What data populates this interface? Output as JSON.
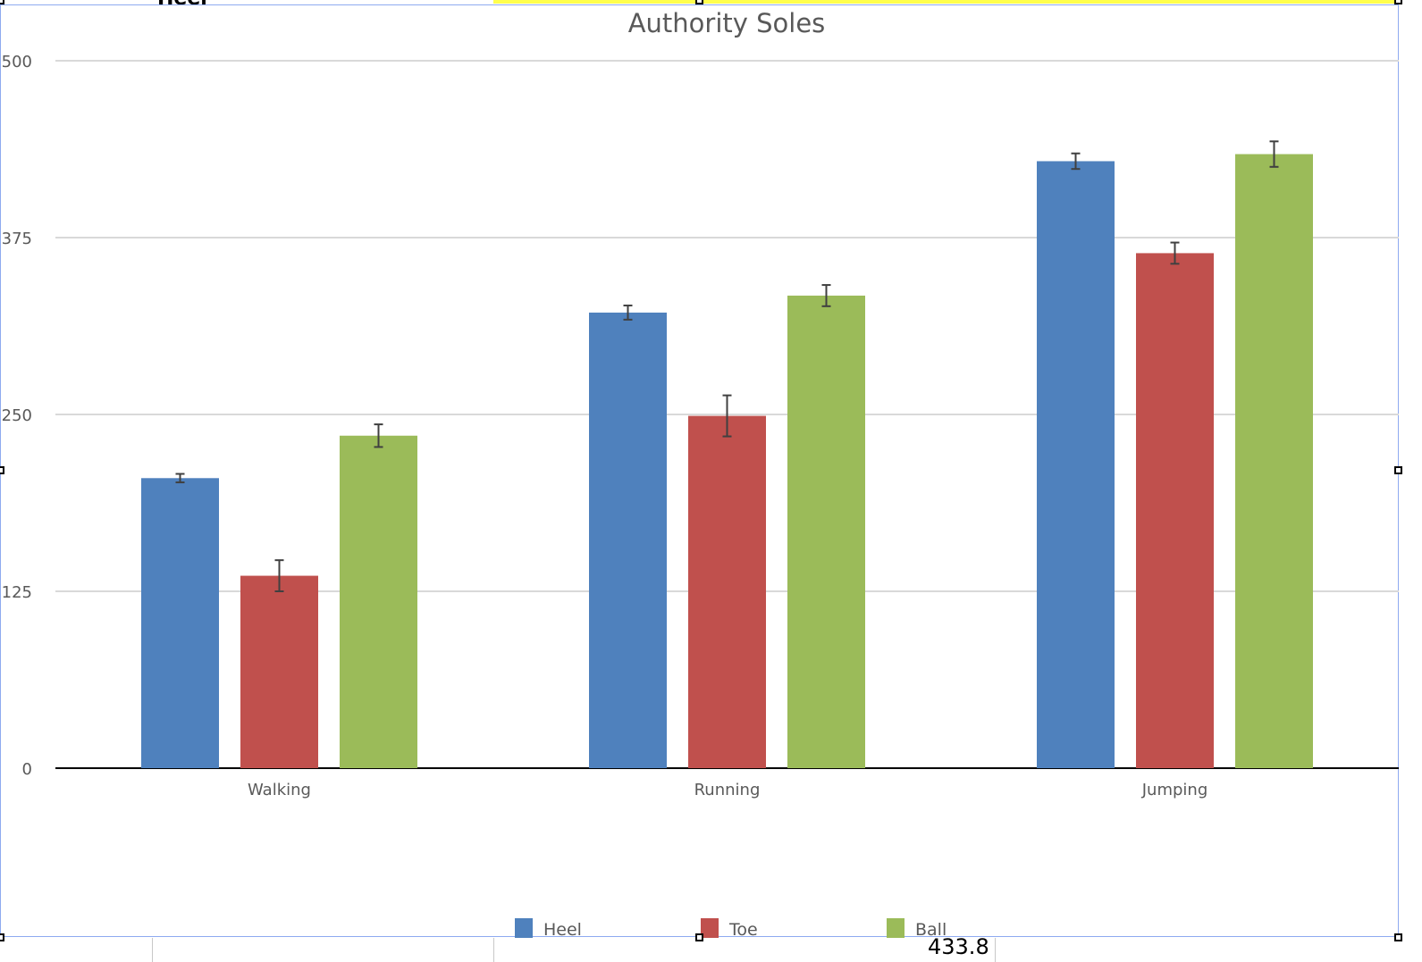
{
  "spreadsheet": {
    "top_cell_fragment": "Heel",
    "bottom_cell_fragment": "433.8",
    "highlight_color": "#ffff4d"
  },
  "chart_data": {
    "type": "bar",
    "title": "Authority Soles",
    "categories": [
      "Walking",
      "Running",
      "Jumping"
    ],
    "series": [
      {
        "name": "Heel",
        "color": "#4f81bd",
        "values": [
          205,
          322,
          429
        ],
        "errors": [
          3,
          5,
          5.5
        ]
      },
      {
        "name": "Toe",
        "color": "#c0504d",
        "values": [
          136,
          249,
          364
        ],
        "errors": [
          11,
          14.5,
          7.5
        ]
      },
      {
        "name": "Ball",
        "color": "#9bbb59",
        "values": [
          235,
          334,
          434
        ],
        "errors": [
          8,
          7.5,
          9
        ]
      }
    ],
    "ylim": [
      0,
      500
    ],
    "yticks": [
      "0",
      "125",
      "250",
      "375",
      "500"
    ],
    "grid": true,
    "legend": "bottom",
    "xlabel": "",
    "ylabel": ""
  }
}
